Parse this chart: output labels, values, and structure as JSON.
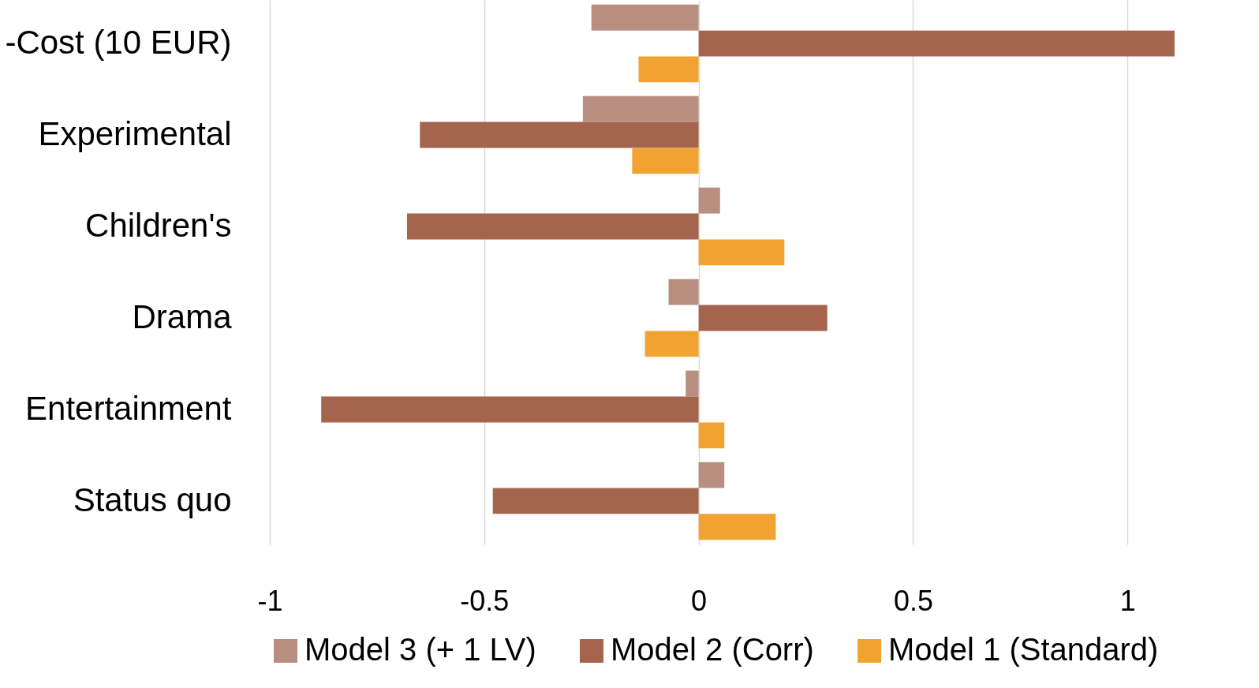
{
  "chart_data": {
    "type": "bar",
    "orientation": "horizontal",
    "categories": [
      "-Cost (10 EUR)",
      "Experimental",
      "Children's",
      "Drama",
      "Entertainment",
      "Status quo"
    ],
    "series": [
      {
        "name": "Model 3 (+ 1 LV)",
        "color": "#b88e80",
        "values": [
          -0.25,
          -0.27,
          0.05,
          -0.07,
          -0.03,
          0.06
        ]
      },
      {
        "name": "Model 2 (Corr)",
        "color": "#a5644e",
        "values": [
          1.11,
          -0.65,
          -0.68,
          0.3,
          -0.88,
          -0.48
        ]
      },
      {
        "name": "Model 1 (Standard)",
        "color": "#f0a330",
        "values": [
          -0.14,
          -0.155,
          0.2,
          -0.125,
          0.06,
          0.18
        ]
      }
    ],
    "xlim": [
      -1,
      1.11
    ],
    "xticks": [
      -1,
      -0.5,
      0,
      0.5,
      1
    ],
    "grid": "x",
    "legend": "bottom"
  }
}
